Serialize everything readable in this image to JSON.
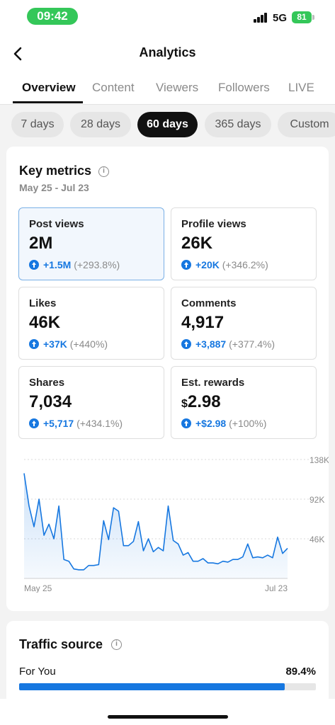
{
  "status_bar": {
    "time": "09:42",
    "network": "5G",
    "battery": "81"
  },
  "header": {
    "title": "Analytics",
    "back_icon": "chevron-left-icon"
  },
  "tabs": [
    {
      "label": "Overview",
      "active": true
    },
    {
      "label": "Content"
    },
    {
      "label": "Viewers"
    },
    {
      "label": "Followers"
    },
    {
      "label": "LIVE"
    }
  ],
  "ranges": [
    {
      "label": "7 days"
    },
    {
      "label": "28 days"
    },
    {
      "label": "60 days",
      "active": true
    },
    {
      "label": "365 days"
    },
    {
      "label": "Custom"
    }
  ],
  "key_metrics": {
    "title": "Key metrics",
    "date_range": "May 25 - Jul 23",
    "metrics": [
      {
        "label": "Post views",
        "value": "2M",
        "delta": "+1.5M",
        "pct": "(+293.8%)",
        "selected": true
      },
      {
        "label": "Profile views",
        "value": "26K",
        "delta": "+20K",
        "pct": "(+346.2%)"
      },
      {
        "label": "Likes",
        "value": "46K",
        "delta": "+37K",
        "pct": "(+440%)"
      },
      {
        "label": "Comments",
        "value": "4,917",
        "delta": "+3,887",
        "pct": "(+377.4%)"
      },
      {
        "label": "Shares",
        "value": "7,034",
        "delta": "+5,717",
        "pct": "(+434.1%)"
      },
      {
        "label": "Est. rewards",
        "value_prefix": "$",
        "value": "2.98",
        "delta": "+$2.98",
        "pct": "(+100%)"
      }
    ]
  },
  "chart_data": {
    "type": "area",
    "y_ticks": [
      "138K",
      "92K",
      "46K"
    ],
    "ylim": [
      0,
      138000
    ],
    "x_labels": [
      "May 25",
      "Jul 23"
    ],
    "series": [
      {
        "values": [
          122000,
          84000,
          60000,
          92000,
          50000,
          63000,
          46000,
          84000,
          22000,
          20000,
          11000,
          10000,
          10000,
          15000,
          15000,
          16000,
          67000,
          45000,
          82000,
          78000,
          38000,
          38000,
          43000,
          66000,
          32000,
          46000,
          31000,
          36000,
          32000,
          84000,
          44000,
          40000,
          27000,
          30000,
          20000,
          20000,
          23000,
          18000,
          18000,
          17000,
          20000,
          19000,
          22000,
          22000,
          25000,
          40000,
          24000,
          25000,
          24000,
          27000,
          24000,
          48000,
          29000,
          35000
        ]
      }
    ],
    "grid": true,
    "color": "#1677e0"
  },
  "traffic": {
    "title": "Traffic source",
    "items": [
      {
        "label": "For You",
        "pct": "89.4%",
        "fraction": 0.894
      }
    ]
  }
}
